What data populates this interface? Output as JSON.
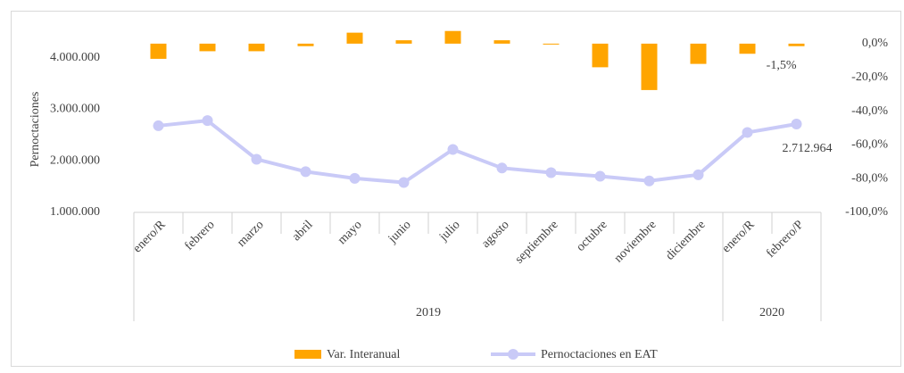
{
  "chart_data": {
    "type": "bar_line",
    "y_label": "Pernoctaciones",
    "groups": [
      {
        "label": "2019",
        "categories": [
          "enero/R",
          "febrero",
          "marzo",
          "abril",
          "mayo",
          "junio",
          "julio",
          "agosto",
          "septiembre",
          "octubre",
          "noviembre",
          "diciembre"
        ]
      },
      {
        "label": "2020",
        "categories": [
          "enero/R",
          "febrero/P"
        ]
      }
    ],
    "series": [
      {
        "name": "Var. Interanual",
        "type": "bar",
        "axis": "y2",
        "color": "#ffa500",
        "values": [
          -9,
          -4.5,
          -4.5,
          -1.5,
          6.5,
          2,
          7.5,
          2,
          -0.5,
          -14,
          -27.5,
          -12,
          -6,
          -1.5
        ],
        "value_labels": [
          null,
          null,
          null,
          null,
          null,
          null,
          null,
          null,
          null,
          null,
          null,
          null,
          null,
          "-1,5%"
        ]
      },
      {
        "name": "Pernoctaciones en EAT",
        "type": "line",
        "axis": "y",
        "color": "#c9caf7",
        "values": [
          2680000,
          2780000,
          2030000,
          1790000,
          1660000,
          1580000,
          2220000,
          1860000,
          1770000,
          1700000,
          1610000,
          1730000,
          2550000,
          2712964
        ],
        "value_labels": [
          null,
          null,
          null,
          null,
          null,
          null,
          null,
          null,
          null,
          null,
          null,
          null,
          null,
          "2.712.964"
        ]
      }
    ],
    "ylim": [
      1000000,
      4600000
    ],
    "yticks": [
      {
        "value": 1000000,
        "label": "1.000.000"
      },
      {
        "value": 2000000,
        "label": "2.000.000"
      },
      {
        "value": 3000000,
        "label": "3.000.000"
      },
      {
        "value": 4000000,
        "label": "4.000.000"
      }
    ],
    "y2lim": [
      -100,
      10
    ],
    "y2ticks": [
      {
        "value": 0,
        "label": "0,0%"
      },
      {
        "value": -20,
        "label": "-20,0%"
      },
      {
        "value": -40,
        "label": "-40,0%"
      },
      {
        "value": -60,
        "label": "-60,0%"
      },
      {
        "value": -80,
        "label": "-80,0%"
      },
      {
        "value": -100,
        "label": "-100,0%"
      }
    ],
    "grid": false,
    "legend": "bottom"
  }
}
